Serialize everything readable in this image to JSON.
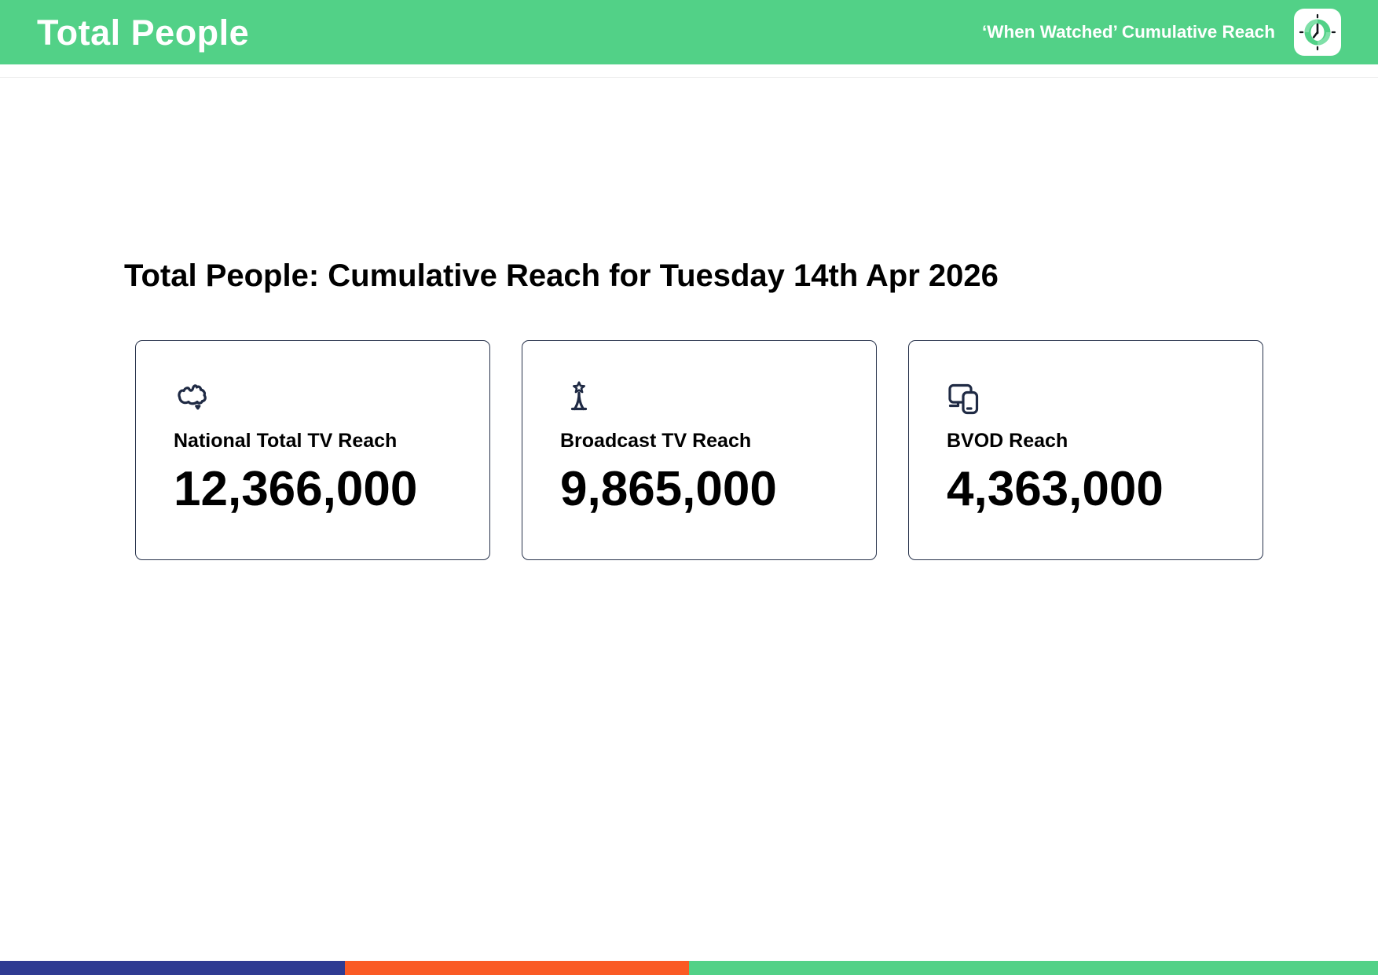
{
  "header": {
    "title": "Total People",
    "right_label": "‘When Watched’ Cumulative Reach",
    "logo_icon": "clock-icon"
  },
  "main": {
    "heading": "Total People: Cumulative Reach for Tuesday 14th Apr 2026",
    "cards": [
      {
        "icon": "australia-map-icon",
        "label": "National Total TV Reach",
        "value": "12,366,000"
      },
      {
        "icon": "broadcast-tower-icon",
        "label": "Broadcast TV Reach",
        "value": "9,865,000"
      },
      {
        "icon": "tv-and-phone-devices-icon",
        "label": "BVOD Reach",
        "value": "4,363,000"
      }
    ]
  },
  "footer": {
    "segments": [
      {
        "name": "footer-bar-navy",
        "color": "#2f3b92",
        "width_pct": 25
      },
      {
        "name": "footer-bar-orange",
        "color": "#fa5a24",
        "width_pct": 25
      },
      {
        "name": "footer-bar-green",
        "color": "#52d187",
        "width_pct": 50
      }
    ]
  },
  "theme": {
    "header_green": "#52d187",
    "header_green_light": "#7fe0a8",
    "footer_navy": "#2f3b92",
    "footer_orange": "#fa5a24",
    "icon_navy": "#1f2a44",
    "card_border": "#27324b",
    "text_black": "#000000",
    "header_text": "#ffffff"
  }
}
